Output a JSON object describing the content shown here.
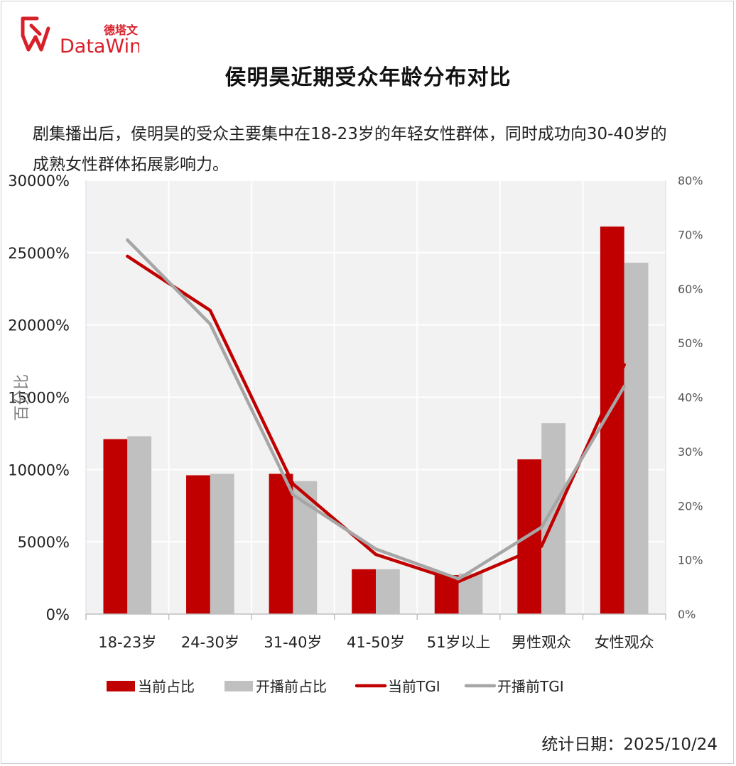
{
  "logo": {
    "brand_cn": "德塔文",
    "brand_en": "DataWin",
    "red": "#d8202a"
  },
  "title": "侯明昊近期受众年龄分布对比",
  "description": "剧集播出后，侯明昊的受众主要集中在18-23岁的年轻女性群体，同时成功向30-40岁的成熟女性群体拓展影响力。",
  "footer": {
    "date_text": "统计日期：2025/10/24"
  },
  "colors": {
    "current": "#c00000",
    "before": "#c0c0c0",
    "plot_bg": "#f2f2f2"
  },
  "chart_data": {
    "type": "bar",
    "categories": [
      "18-23岁",
      "24-30岁",
      "31-40岁",
      "41-50岁",
      "51岁以上",
      "男性观众",
      "女性观众"
    ],
    "ylabel": "百分比",
    "ylim": [
      0,
      30000
    ],
    "yticks": [
      "0%",
      "5000%",
      "10000%",
      "15000%",
      "20000%",
      "25000%",
      "30000%"
    ],
    "y2lim": [
      0,
      80
    ],
    "y2ticks": [
      "0%",
      "10%",
      "20%",
      "30%",
      "40%",
      "50%",
      "60%",
      "70%",
      "80%"
    ],
    "grid": true,
    "legend_position": "bottom",
    "series": [
      {
        "name": "当前占比",
        "type": "bar",
        "axis": "left",
        "color": "#c00000",
        "values": [
          12100,
          9600,
          9700,
          3100,
          2700,
          10700,
          26800
        ]
      },
      {
        "name": "开播前占比",
        "type": "bar",
        "axis": "left",
        "color": "#c0c0c0",
        "values": [
          12300,
          9700,
          9200,
          3100,
          2800,
          13200,
          24300
        ]
      },
      {
        "name": "当前TGI",
        "type": "line",
        "axis": "right",
        "color": "#c00000",
        "values": [
          66,
          56,
          24,
          11,
          6,
          12.5,
          46
        ]
      },
      {
        "name": "开播前TGI",
        "type": "line",
        "axis": "right",
        "color": "#a6a6a6",
        "values": [
          69,
          53.5,
          22,
          12,
          6.5,
          16,
          42
        ]
      }
    ]
  }
}
